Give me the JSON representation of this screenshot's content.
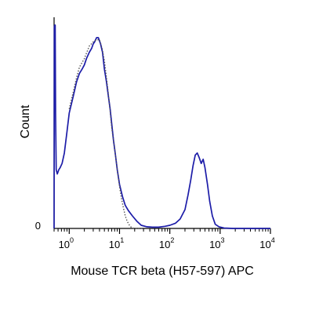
{
  "chart_data": {
    "type": "line",
    "xlabel": "Mouse TCR beta (H57-597) APC",
    "ylabel": "Count",
    "x_scale": "log",
    "xlim": [
      0.5,
      10000
    ],
    "ylim": [
      0,
      100
    ],
    "y_ticks": [
      {
        "value": 0,
        "label": "0"
      }
    ],
    "x_ticks": [
      {
        "value": 1,
        "base": "10",
        "exp": "0"
      },
      {
        "value": 10,
        "base": "10",
        "exp": "1"
      },
      {
        "value": 100,
        "base": "10",
        "exp": "2"
      },
      {
        "value": 1000,
        "base": "10",
        "exp": "3"
      },
      {
        "value": 10000,
        "base": "10",
        "exp": "4"
      }
    ],
    "series": [
      {
        "style": "solid",
        "color": "#1c1ca8",
        "points": [
          [
            0.5,
            0
          ],
          [
            0.505,
            96
          ],
          [
            0.515,
            97
          ],
          [
            0.525,
            97
          ],
          [
            0.535,
            55
          ],
          [
            0.55,
            28
          ],
          [
            0.58,
            26
          ],
          [
            0.62,
            28
          ],
          [
            0.66,
            29
          ],
          [
            0.72,
            31
          ],
          [
            0.8,
            36
          ],
          [
            0.9,
            46
          ],
          [
            1.0,
            55
          ],
          [
            1.2,
            63
          ],
          [
            1.4,
            70
          ],
          [
            1.6,
            74
          ],
          [
            1.8,
            76
          ],
          [
            2.0,
            78
          ],
          [
            2.2,
            81
          ],
          [
            2.5,
            84
          ],
          [
            2.8,
            86
          ],
          [
            3.0,
            88
          ],
          [
            3.2,
            89
          ],
          [
            3.5,
            91
          ],
          [
            3.8,
            91
          ],
          [
            4.2,
            88
          ],
          [
            4.6,
            84
          ],
          [
            5.0,
            76
          ],
          [
            5.5,
            70
          ],
          [
            6.0,
            63
          ],
          [
            6.5,
            57
          ],
          [
            7.0,
            50
          ],
          [
            7.6,
            42
          ],
          [
            8.3,
            35
          ],
          [
            9.0,
            28
          ],
          [
            10.0,
            21
          ],
          [
            11.5,
            15
          ],
          [
            13,
            11
          ],
          [
            15,
            8.5
          ],
          [
            18,
            6
          ],
          [
            22,
            3.5
          ],
          [
            27,
            1.5
          ],
          [
            35,
            0.8
          ],
          [
            45,
            0.6
          ],
          [
            60,
            0.6
          ],
          [
            80,
            1
          ],
          [
            100,
            1.5
          ],
          [
            130,
            2.5
          ],
          [
            160,
            4.5
          ],
          [
            200,
            9
          ],
          [
            230,
            16
          ],
          [
            260,
            23
          ],
          [
            290,
            30
          ],
          [
            320,
            35
          ],
          [
            350,
            36
          ],
          [
            380,
            34
          ],
          [
            420,
            31
          ],
          [
            460,
            33
          ],
          [
            500,
            29
          ],
          [
            560,
            21
          ],
          [
            620,
            13
          ],
          [
            700,
            6
          ],
          [
            800,
            2
          ],
          [
            950,
            0.8
          ],
          [
            1200,
            0.2
          ],
          [
            1800,
            0
          ],
          [
            3000,
            0
          ],
          [
            6000,
            0
          ],
          [
            10000,
            0
          ]
        ]
      },
      {
        "style": "dotted",
        "color": "#555555",
        "points": [
          [
            1.0,
            57
          ],
          [
            1.2,
            65
          ],
          [
            1.4,
            72
          ],
          [
            1.6,
            77
          ],
          [
            2.0,
            81
          ],
          [
            2.5,
            87
          ],
          [
            3.0,
            89
          ],
          [
            3.5,
            90
          ],
          [
            4.0,
            90
          ],
          [
            4.5,
            86
          ],
          [
            5.0,
            80
          ],
          [
            5.5,
            72
          ],
          [
            6.0,
            64
          ],
          [
            6.5,
            56
          ],
          [
            7.0,
            48
          ],
          [
            8.0,
            38
          ],
          [
            9.0,
            28
          ],
          [
            10.0,
            20
          ],
          [
            11.0,
            14
          ],
          [
            12.0,
            9.5
          ],
          [
            13,
            6
          ],
          [
            14,
            3.8
          ],
          [
            15,
            2.3
          ],
          [
            16,
            1.3
          ],
          [
            17,
            0.6
          ],
          [
            18,
            0.2
          ],
          [
            20,
            0
          ],
          [
            30,
            0
          ]
        ]
      }
    ]
  }
}
